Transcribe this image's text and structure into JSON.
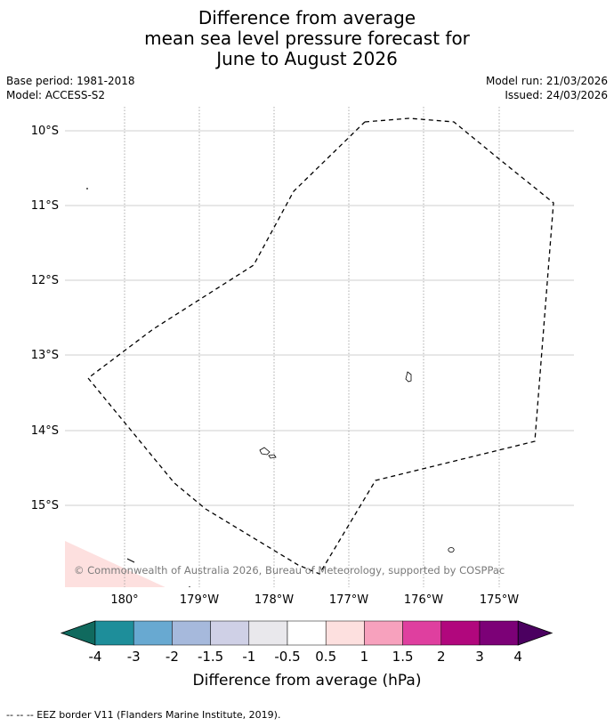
{
  "title": {
    "line1": "Difference from average",
    "line2": "mean sea level pressure forecast for",
    "line3": "June to August 2026"
  },
  "meta": {
    "base_period": "Base period: 1981-2018",
    "model": "Model: ACCESS-S2",
    "model_run": "Model run: 21/03/2026",
    "issued": "Issued: 24/03/2026"
  },
  "map": {
    "lat_labels": [
      "10°S",
      "11°S",
      "12°S",
      "13°S",
      "14°S",
      "15°S"
    ],
    "lon_labels": [
      "180°",
      "179°W",
      "178°W",
      "177°W",
      "176°W",
      "175°W"
    ],
    "copyright": "© Commonwealth of Australia 2026, Bureau of Meteorology, supported by COSPPac",
    "overlay_color": "#fde0df"
  },
  "colorbar": {
    "tick_labels": [
      "-4",
      "-3",
      "-2",
      "-1.5",
      "-1",
      "-0.5",
      "0.5",
      "1",
      "1.5",
      "2",
      "3",
      "4"
    ],
    "colors": [
      "#106a5e",
      "#1e8e9a",
      "#68a9d1",
      "#a6b9dc",
      "#cfd0e6",
      "#e9e8ec",
      "#ffffff",
      "#fde0df",
      "#f7a1bd",
      "#df3f9f",
      "#b1077d",
      "#7c0177",
      "#4b0060"
    ],
    "label": "Difference from average (hPa)"
  },
  "footer": {
    "legend": "--  --  -- EEZ border V11 (Flanders Marine Institute, 2019)."
  }
}
